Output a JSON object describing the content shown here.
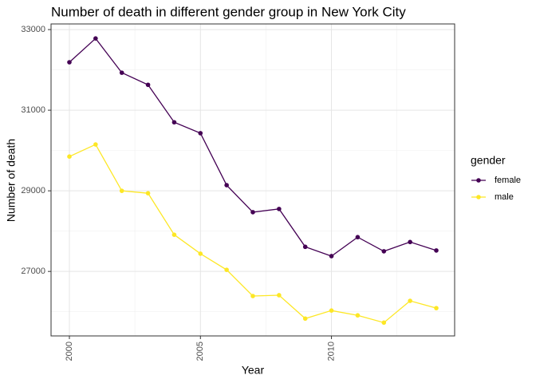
{
  "chart_data": {
    "type": "line",
    "title": "Number of death in different gender group in New York City",
    "x_label": "Year",
    "y_label": "Number of death",
    "x": [
      2000,
      2001,
      2002,
      2003,
      2004,
      2005,
      2006,
      2007,
      2008,
      2009,
      2010,
      2011,
      2012,
      2013,
      2014
    ],
    "series": [
      {
        "name": "female",
        "color": "#440154",
        "values": [
          32190,
          32780,
          31930,
          31630,
          30700,
          30430,
          29140,
          28470,
          28550,
          27610,
          27380,
          27850,
          27500,
          27730,
          27520
        ]
      },
      {
        "name": "male",
        "color": "#FDE725",
        "values": [
          29850,
          30150,
          29000,
          28940,
          27910,
          27440,
          27040,
          26390,
          26410,
          25830,
          26030,
          25910,
          25730,
          26270,
          26090
        ]
      }
    ],
    "xlim": [
      1999.3,
      2014.7
    ],
    "xticks": [
      2000,
      2005,
      2010
    ],
    "ylim": [
      25400,
      33140
    ],
    "yticks": [
      27000,
      29000,
      31000,
      33000
    ],
    "grid": true,
    "legend_title": "gender",
    "legend_position": "right"
  }
}
